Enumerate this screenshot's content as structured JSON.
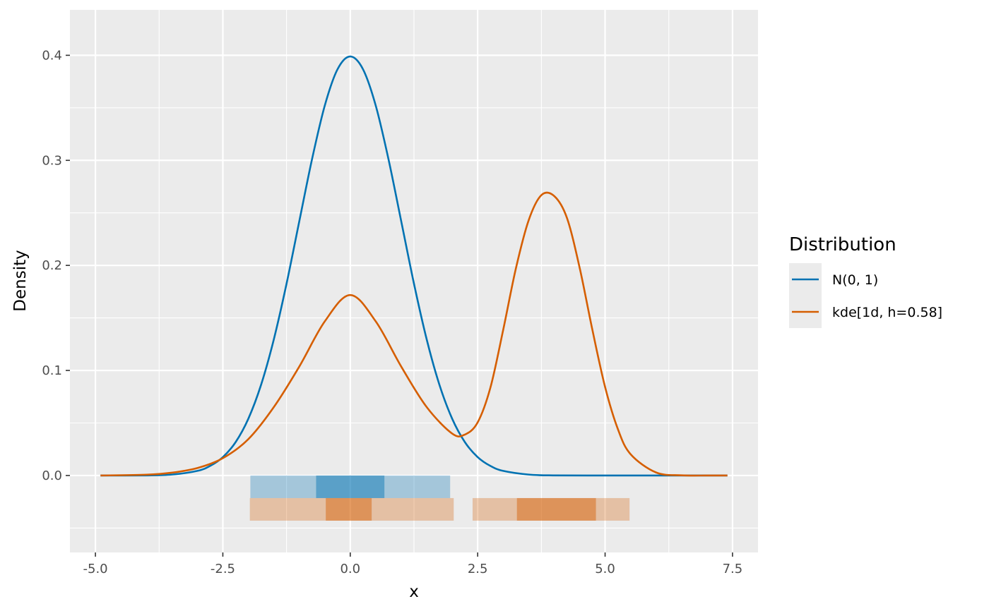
{
  "chart_data": {
    "type": "line",
    "title": "",
    "xlabel": "x",
    "ylabel": "Density",
    "xlim": [
      -5.0,
      7.5
    ],
    "ylim": [
      -0.05,
      0.42
    ],
    "grid": true,
    "x_ticks": [
      "-5.0",
      "-2.5",
      "0.0",
      "2.5",
      "5.0",
      "7.5"
    ],
    "y_ticks": [
      "0.0",
      "0.1",
      "0.2",
      "0.3",
      "0.4"
    ],
    "legend": {
      "title": "Distribution",
      "placement": "right",
      "entries": [
        "N(0, 1)",
        "kde[1d, h=0.58]"
      ]
    },
    "series": [
      {
        "name": "N(0, 1)",
        "color": "#0072B2",
        "x": [
          -4.9,
          -4.0,
          -3.5,
          -3.0,
          -2.75,
          -2.5,
          -2.25,
          -2.0,
          -1.75,
          -1.5,
          -1.25,
          -1.0,
          -0.75,
          -0.5,
          -0.25,
          0.0,
          0.25,
          0.5,
          0.75,
          1.0,
          1.25,
          1.5,
          1.75,
          2.0,
          2.25,
          2.5,
          2.75,
          3.0,
          3.5,
          4.0,
          5.0,
          6.0,
          7.4
        ],
        "y": [
          0.0,
          0.0001,
          0.0009,
          0.0044,
          0.0091,
          0.0175,
          0.0317,
          0.054,
          0.0863,
          0.1295,
          0.1826,
          0.242,
          0.3011,
          0.3521,
          0.3867,
          0.3989,
          0.3867,
          0.3521,
          0.3011,
          0.242,
          0.1826,
          0.1295,
          0.0863,
          0.054,
          0.0317,
          0.0175,
          0.0091,
          0.0044,
          0.0009,
          0.0001,
          0.0,
          0.0,
          0.0
        ]
      },
      {
        "name": "kde[1d, h=0.58]",
        "color": "#D55E00",
        "x": [
          -4.9,
          -4.0,
          -3.5,
          -3.0,
          -2.5,
          -2.0,
          -1.5,
          -1.0,
          -0.5,
          0.0,
          0.5,
          1.0,
          1.5,
          2.0,
          2.25,
          2.5,
          2.75,
          3.0,
          3.25,
          3.5,
          3.75,
          4.0,
          4.25,
          4.5,
          4.75,
          5.0,
          5.25,
          5.5,
          6.0,
          6.5,
          7.0,
          7.4
        ],
        "y": [
          0.0,
          0.0008,
          0.0027,
          0.0071,
          0.0165,
          0.0346,
          0.0651,
          0.1037,
          0.1467,
          0.1718,
          0.1467,
          0.1037,
          0.0651,
          0.0399,
          0.039,
          0.0506,
          0.0837,
          0.1385,
          0.1972,
          0.2429,
          0.2669,
          0.2661,
          0.2454,
          0.1979,
          0.1388,
          0.0842,
          0.0443,
          0.0203,
          0.0029,
          0.0002,
          0.0,
          0.0
        ]
      }
    ],
    "interval_bands": [
      {
        "series": "N(0, 1)",
        "color": "#0072B2",
        "row": 1,
        "segments": [
          {
            "lower": -1.96,
            "upper": 1.96,
            "level": "outer"
          },
          {
            "lower": -0.67,
            "upper": 0.67,
            "level": "inner"
          }
        ]
      },
      {
        "series": "kde[1d, h=0.58]",
        "color": "#D55E00",
        "row": 2,
        "segments": [
          {
            "lower": -1.97,
            "upper": 2.03,
            "level": "outer"
          },
          {
            "lower": 2.4,
            "upper": 5.48,
            "level": "outer"
          },
          {
            "lower": -0.48,
            "upper": 0.42,
            "level": "inner"
          },
          {
            "lower": 3.27,
            "upper": 4.82,
            "level": "inner"
          }
        ]
      }
    ]
  }
}
